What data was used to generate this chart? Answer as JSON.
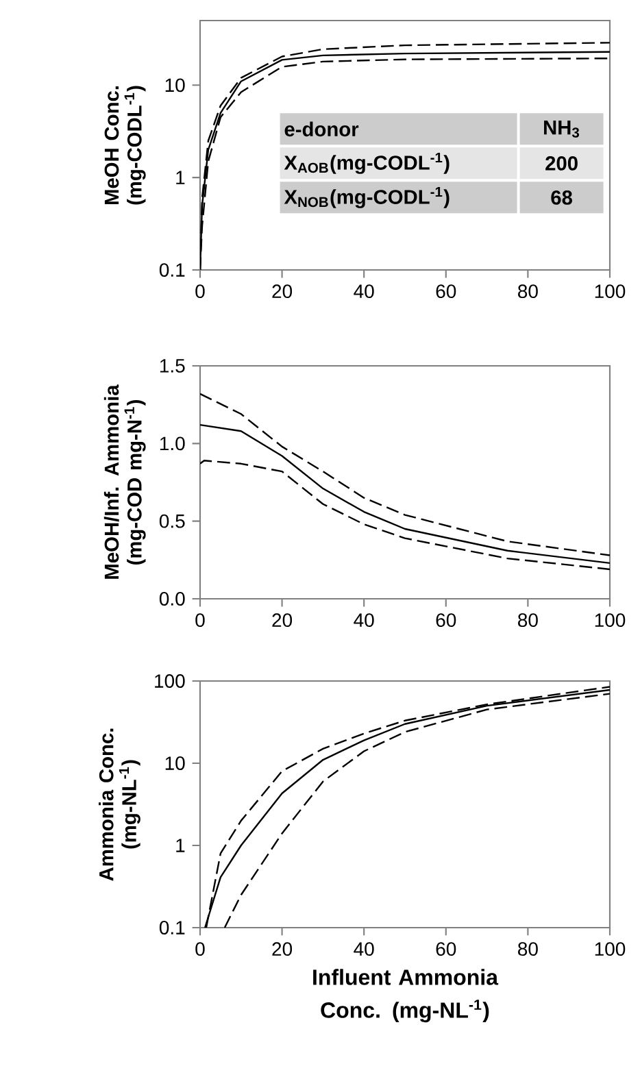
{
  "chart_data": [
    {
      "type": "line",
      "ylabel": "MeOH Conc. (mg-CODL$^{-1}$)",
      "log": "y",
      "xlim": [
        0,
        100
      ],
      "ylim": [
        0.1,
        50
      ],
      "xticks": [
        0,
        20,
        40,
        60,
        80,
        100
      ],
      "yticks": [
        0.1,
        1,
        10
      ],
      "annotations": [
        "e-donor",
        "NH$_{3}$",
        "X$_{AOB}$(mg-CODL$^{-1}$)",
        "200",
        "X$_{NOB}$(mg-CODL$^{-1}$)",
        "68"
      ],
      "series": [
        {
          "color": "#000000",
          "line_style": "dashed",
          "x": [
            0,
            0.5,
            2,
            5,
            10,
            20,
            30,
            50,
            100
          ],
          "values": [
            0.1,
            0.6,
            2.5,
            6,
            12,
            20.4,
            24.5,
            27,
            28.8
          ]
        },
        {
          "color": "#000000",
          "line_style": "solid",
          "x": [
            0,
            0.5,
            2,
            5,
            10,
            20,
            30,
            50,
            100
          ],
          "values": [
            0.1,
            0.5,
            2,
            5,
            11,
            18.8,
            21,
            22,
            22.9
          ]
        },
        {
          "color": "#000000",
          "line_style": "dashed",
          "x": [
            0,
            0.5,
            2,
            5,
            10,
            20,
            30,
            50,
            100
          ],
          "values": [
            0.1,
            0.3,
            1.5,
            4.5,
            8.4,
            15.8,
            18,
            19,
            19.5
          ]
        }
      ]
    },
    {
      "type": "line",
      "ylabel": "MeOH/Inf. Ammonia (mg-COD mg-N$^{-1}$)",
      "xlim": [
        0,
        100
      ],
      "ylim": [
        0,
        1.5
      ],
      "xticks": [
        0,
        20,
        40,
        60,
        80,
        100
      ],
      "yticks": [
        {
          "value": 0,
          "label": "0.0"
        },
        {
          "value": 0.5,
          "label": "0.5"
        },
        {
          "value": 1,
          "label": "1.0"
        },
        1.5
      ],
      "series": [
        {
          "color": "#000000",
          "line_style": "dashed",
          "x": [
            0,
            10,
            20,
            30,
            40,
            50,
            75,
            100
          ],
          "values": [
            1.32,
            1.19,
            0.98,
            0.82,
            0.65,
            0.54,
            0.37,
            0.28
          ]
        },
        {
          "color": "#000000",
          "line_style": "solid",
          "x": [
            0,
            10,
            20,
            30,
            40,
            50,
            75,
            100
          ],
          "values": [
            1.12,
            1.08,
            0.92,
            0.71,
            0.56,
            0.45,
            0.31,
            0.23
          ]
        },
        {
          "color": "#000000",
          "line_style": "dashed",
          "x": [
            0,
            1,
            10,
            20,
            30,
            40,
            50,
            75,
            100
          ],
          "values": [
            0.87,
            0.89,
            0.87,
            0.82,
            0.61,
            0.48,
            0.39,
            0.26,
            0.19
          ]
        }
      ]
    },
    {
      "type": "line",
      "ylabel": "Ammonia Conc. (mg-NL$^{-1}$)",
      "xlabel": "Influent Ammonia Conc. (mg-NL$^{-1}$)",
      "log": "y",
      "xlim": [
        0,
        100
      ],
      "ylim": [
        0.1,
        100
      ],
      "xticks": [
        0,
        20,
        40,
        60,
        80,
        100
      ],
      "yticks": [
        0.1,
        1,
        10,
        100
      ],
      "series": [
        {
          "color": "#000000",
          "line_style": "dashed",
          "x": [
            1.5,
            5,
            10,
            20,
            30,
            40,
            50,
            70,
            100
          ],
          "values": [
            0.1,
            0.8,
            2,
            8,
            15,
            23,
            33,
            52,
            85
          ]
        },
        {
          "color": "#000000",
          "line_style": "solid",
          "x": [
            1.2,
            5,
            10,
            20,
            30,
            40,
            50,
            70,
            100
          ],
          "values": [
            0.1,
            0.41,
            1.0,
            4.3,
            11,
            19,
            30,
            50,
            78
          ]
        },
        {
          "color": "#000000",
          "line_style": "dashed",
          "x": [
            6,
            10,
            20,
            30,
            40,
            50,
            70,
            100
          ],
          "values": [
            0.1,
            0.25,
            1.4,
            6,
            14,
            24,
            45,
            70
          ]
        }
      ]
    }
  ]
}
